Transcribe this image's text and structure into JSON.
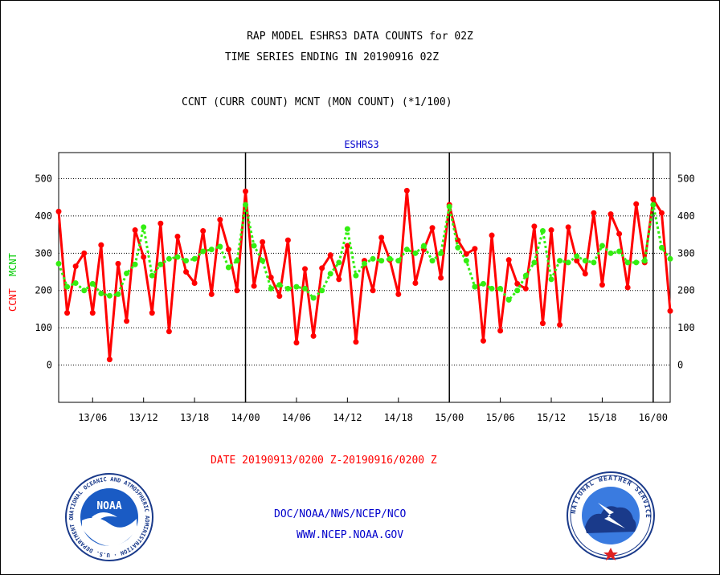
{
  "header": {
    "title_line1": "RAP MODEL ESHRS3 DATA COUNTS for 02Z",
    "title_line2": "TIME SERIES ENDING IN 20190916 02Z",
    "subtitle": "CCNT (CURR COUNT) MCNT (MON COUNT) (*1/100)"
  },
  "footer": {
    "date_range": "DATE 20190913/0200 Z-20190916/0200 Z",
    "org": "DOC/NOAA/NWS/NCEP/NCO",
    "url": "WWW.NCEP.NOAA.GOV"
  },
  "logos": {
    "left": {
      "inner": "NOAA",
      "ring": "NATIONAL OCEANIC AND ATMOSPHERIC ADMINISTRATION · U.S. DEPARTMENT OF COMMERCE"
    },
    "right": {
      "ring": "NATIONAL WEATHER SERVICE"
    }
  },
  "colors": {
    "ccnt": "#ff0000",
    "mcnt": "#33ee11",
    "blue_text": "#0000cc",
    "title_text": "#000000"
  },
  "chart_data": {
    "type": "line",
    "title": "ESHRS3",
    "ylabel_left": [
      "CCNT",
      "MCNT"
    ],
    "ylim": [
      -100,
      570
    ],
    "yticks": [
      0,
      100,
      200,
      300,
      400,
      500
    ],
    "x_tick_labels": [
      "13/06",
      "13/12",
      "13/18",
      "14/00",
      "14/06",
      "14/12",
      "14/18",
      "15/00",
      "15/06",
      "15/12",
      "15/18",
      "16/00"
    ],
    "x_tick_hours": [
      4,
      10,
      16,
      22,
      28,
      34,
      40,
      46,
      52,
      58,
      64,
      70
    ],
    "x_range_hours": [
      0,
      72
    ],
    "day_boundaries_hours": [
      22,
      46,
      70
    ],
    "grid": true,
    "series": [
      {
        "name": "CCNT",
        "color": "#ff0000",
        "style": "solid",
        "x": [
          0,
          1,
          2,
          3,
          4,
          5,
          6,
          7,
          8,
          9,
          10,
          11,
          12,
          13,
          14,
          15,
          16,
          17,
          18,
          19,
          20,
          21,
          22,
          23,
          24,
          25,
          26,
          27,
          28,
          29,
          30,
          31,
          32,
          33,
          34,
          35,
          36,
          37,
          38,
          39,
          40,
          41,
          42,
          43,
          44,
          45,
          46,
          47,
          48,
          49,
          50,
          51,
          52,
          53,
          54,
          55,
          56,
          57,
          58,
          59,
          60,
          61,
          62,
          63,
          64,
          65,
          66,
          67,
          68,
          69,
          70,
          71,
          72
        ],
        "values": [
          412,
          140,
          265,
          300,
          140,
          322,
          15,
          272,
          118,
          362,
          290,
          140,
          380,
          90,
          345,
          250,
          220,
          360,
          190,
          390,
          310,
          200,
          466,
          212,
          330,
          235,
          185,
          335,
          60,
          258,
          78,
          260,
          295,
          230,
          320,
          62,
          280,
          200,
          342,
          282,
          190,
          468,
          220,
          310,
          368,
          234,
          430,
          335,
          298,
          312,
          65,
          348,
          92,
          282,
          218,
          205,
          372,
          112,
          362,
          108,
          370,
          280,
          245,
          408,
          215,
          405,
          352,
          208,
          432,
          275,
          445,
          408,
          145
        ]
      },
      {
        "name": "MCNT",
        "color": "#33ee11",
        "style": "dotted",
        "x": [
          0,
          1,
          2,
          3,
          4,
          5,
          6,
          7,
          8,
          9,
          10,
          11,
          12,
          13,
          14,
          15,
          16,
          17,
          18,
          19,
          20,
          21,
          22,
          23,
          24,
          25,
          26,
          27,
          28,
          29,
          30,
          31,
          32,
          33,
          34,
          35,
          36,
          37,
          38,
          39,
          40,
          41,
          42,
          43,
          44,
          45,
          46,
          47,
          48,
          49,
          50,
          51,
          52,
          53,
          54,
          55,
          56,
          57,
          58,
          59,
          60,
          61,
          62,
          63,
          64,
          65,
          66,
          67,
          68,
          69,
          70,
          71,
          72
        ],
        "values": [
          272,
          210,
          220,
          200,
          218,
          192,
          186,
          190,
          246,
          270,
          370,
          240,
          270,
          285,
          290,
          280,
          285,
          305,
          310,
          318,
          262,
          280,
          430,
          320,
          280,
          205,
          215,
          205,
          210,
          205,
          180,
          200,
          245,
          275,
          365,
          240,
          272,
          285,
          280,
          285,
          280,
          310,
          300,
          320,
          280,
          300,
          425,
          315,
          280,
          210,
          218,
          205,
          205,
          175,
          200,
          240,
          275,
          360,
          230,
          280,
          275,
          292,
          280,
          275,
          320,
          300,
          305,
          275,
          275,
          280,
          430,
          315,
          285
        ]
      }
    ]
  }
}
